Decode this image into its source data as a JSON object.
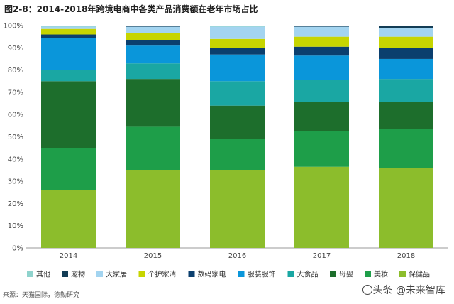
{
  "header": {
    "title": "图2-8：2014-2018年跨境电商中各类产品消费额在老年市场占比"
  },
  "footer": {
    "source": "来源：天猫国际，德勤研究",
    "watermark": "头条 @未来智库"
  },
  "chart_data": {
    "type": "bar",
    "stacked": true,
    "categories": [
      "2014",
      "2015",
      "2016",
      "2017",
      "2018"
    ],
    "ylim": [
      0,
      100
    ],
    "yticks": [
      "0%",
      "10%",
      "20%",
      "30%",
      "40%",
      "50%",
      "60%",
      "70%",
      "80%",
      "90%",
      "100%"
    ],
    "legend_position": "bottom",
    "series": [
      {
        "name": "保健品",
        "color": "#8cbd2c",
        "values": [
          26,
          35,
          35,
          36.5,
          36
        ]
      },
      {
        "name": "美妆",
        "color": "#1e9e49",
        "values": [
          19,
          19.5,
          14,
          16,
          17.5
        ]
      },
      {
        "name": "母婴",
        "color": "#1d6e2c",
        "values": [
          30,
          21.5,
          15,
          13,
          12
        ]
      },
      {
        "name": "大食品",
        "color": "#1aa7a3",
        "values": [
          5,
          7,
          11,
          10,
          10.5
        ]
      },
      {
        "name": "服装服饰",
        "color": "#0a96da",
        "values": [
          14.5,
          8,
          12,
          11,
          9
        ]
      },
      {
        "name": "数码家电",
        "color": "#0b3f6e",
        "values": [
          1.5,
          2.5,
          3,
          4,
          5
        ]
      },
      {
        "name": "个护家清",
        "color": "#c7d500",
        "values": [
          2.5,
          3,
          4,
          4.5,
          5
        ]
      },
      {
        "name": "大家居",
        "color": "#a3d4f0",
        "values": [
          1,
          3,
          5.5,
          4.5,
          4
        ]
      },
      {
        "name": "宠物",
        "color": "#123c55",
        "values": [
          0,
          0.5,
          0,
          0.5,
          1
        ]
      },
      {
        "name": "其他",
        "color": "#8fd3cd",
        "values": [
          0.5,
          0,
          0.5,
          0,
          0
        ]
      }
    ]
  }
}
